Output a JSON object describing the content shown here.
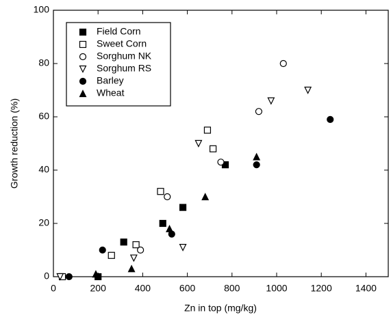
{
  "chart_data": {
    "type": "scatter",
    "xlabel": "Zn in top (mg/kg)",
    "ylabel": "Growth reduction (%)",
    "xlim": [
      0,
      1500
    ],
    "ylim": [
      0,
      100
    ],
    "xticks": [
      0,
      200,
      400,
      600,
      800,
      1000,
      1200,
      1400
    ],
    "yticks": [
      0,
      20,
      40,
      60,
      80,
      100
    ],
    "legend": "upper-left",
    "series": [
      {
        "name": "Field Corn",
        "color": "#000000",
        "marker": "square-filled",
        "x": [
          200,
          315,
          490,
          580,
          770
        ],
        "values": [
          0,
          13,
          20,
          26,
          42
        ]
      },
      {
        "name": "Sweet Corn",
        "color": "#000000",
        "marker": "square-open",
        "x": [
          40,
          260,
          370,
          480,
          690,
          715
        ],
        "values": [
          0,
          8,
          12,
          32,
          55,
          48
        ]
      },
      {
        "name": "Sorghum NK",
        "color": "#000000",
        "marker": "circle-open",
        "x": [
          390,
          510,
          750,
          920,
          1030
        ],
        "values": [
          10,
          30,
          43,
          62,
          80
        ]
      },
      {
        "name": "Sorghum RS",
        "color": "#000000",
        "marker": "triangle-down-open",
        "x": [
          30,
          360,
          580,
          650,
          975,
          1140
        ],
        "values": [
          0,
          7,
          11,
          50,
          66,
          70
        ]
      },
      {
        "name": "Barley",
        "color": "#000000",
        "marker": "circle-filled",
        "x": [
          70,
          220,
          530,
          910,
          1240
        ],
        "values": [
          0,
          10,
          16,
          42,
          59
        ]
      },
      {
        "name": "Wheat",
        "color": "#000000",
        "marker": "triangle-up-filled",
        "x": [
          190,
          350,
          520,
          680,
          910
        ],
        "values": [
          1,
          3,
          18,
          30,
          45
        ]
      }
    ]
  }
}
